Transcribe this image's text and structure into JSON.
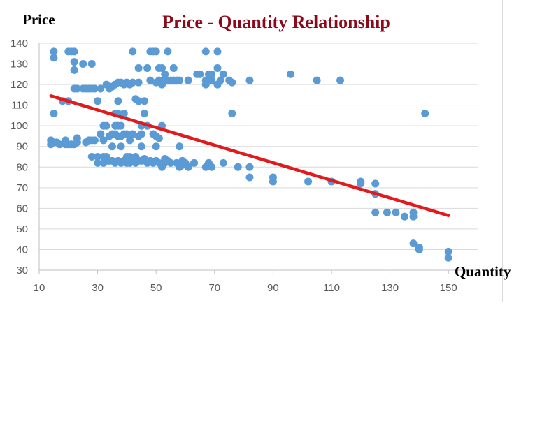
{
  "chart_data": {
    "type": "scatter",
    "title": "Price - Quantity Relationship",
    "xlabel": "Quantity",
    "ylabel": "Price",
    "xlim": [
      10,
      160
    ],
    "ylim": [
      30,
      140
    ],
    "x_ticks": [
      "10",
      "30",
      "50",
      "70",
      "90",
      "110",
      "130",
      "150"
    ],
    "y_ticks": [
      "140",
      "130",
      "120",
      "110",
      "100",
      "90",
      "80",
      "70",
      "60",
      "50",
      "40",
      "30"
    ],
    "grid": true,
    "colors": {
      "points": "#5b9bd5",
      "trendline": "#e31a1c",
      "title": "#8b0a1a",
      "grid": "#d9d9d9"
    },
    "trendline": {
      "x": [
        14,
        150
      ],
      "y": [
        114.5,
        56.5
      ]
    },
    "series": [
      {
        "points": [
          [
            15,
            136
          ],
          [
            15,
            133
          ],
          [
            15,
            106
          ],
          [
            14,
            91
          ],
          [
            14,
            93
          ],
          [
            15,
            92
          ],
          [
            16,
            92
          ],
          [
            17,
            91
          ],
          [
            18,
            112
          ],
          [
            19,
            91
          ],
          [
            19,
            93
          ],
          [
            20,
            112
          ],
          [
            20,
            91
          ],
          [
            20,
            136
          ],
          [
            21,
            91
          ],
          [
            21,
            136
          ],
          [
            22,
            136
          ],
          [
            22,
            131
          ],
          [
            22,
            127
          ],
          [
            22,
            118
          ],
          [
            22,
            91
          ],
          [
            23,
            118
          ],
          [
            23,
            94
          ],
          [
            23,
            92
          ],
          [
            25,
            130
          ],
          [
            25,
            118
          ],
          [
            26,
            118
          ],
          [
            26,
            92
          ],
          [
            27,
            118
          ],
          [
            27,
            93
          ],
          [
            28,
            130
          ],
          [
            28,
            118
          ],
          [
            28,
            93
          ],
          [
            28,
            85
          ],
          [
            29,
            118
          ],
          [
            29,
            93
          ],
          [
            30,
            112
          ],
          [
            30,
            82
          ],
          [
            30,
            85
          ],
          [
            31,
            96
          ],
          [
            31,
            118
          ],
          [
            32,
            100
          ],
          [
            32,
            93
          ],
          [
            32,
            82
          ],
          [
            32,
            85
          ],
          [
            33,
            120
          ],
          [
            33,
            100
          ],
          [
            33,
            85
          ],
          [
            33,
            83
          ],
          [
            34,
            118
          ],
          [
            34,
            95
          ],
          [
            34,
            83
          ],
          [
            35,
            119
          ],
          [
            35,
            96
          ],
          [
            35,
            90
          ],
          [
            35,
            83
          ],
          [
            36,
            120
          ],
          [
            36,
            106
          ],
          [
            36,
            100
          ],
          [
            36,
            96
          ],
          [
            36,
            82
          ],
          [
            37,
            121
          ],
          [
            37,
            106
          ],
          [
            37,
            112
          ],
          [
            37,
            100
          ],
          [
            37,
            95
          ],
          [
            37,
            83
          ],
          [
            38,
            121
          ],
          [
            38,
            100
          ],
          [
            38,
            95
          ],
          [
            38,
            90
          ],
          [
            38,
            82
          ],
          [
            39,
            120
          ],
          [
            39,
            106
          ],
          [
            39,
            96
          ],
          [
            39,
            83
          ],
          [
            40,
            121
          ],
          [
            40,
            96
          ],
          [
            40,
            85
          ],
          [
            40,
            82
          ],
          [
            41,
            120
          ],
          [
            41,
            95
          ],
          [
            41,
            93
          ],
          [
            41,
            85
          ],
          [
            41,
            82
          ],
          [
            42,
            136
          ],
          [
            42,
            121
          ],
          [
            42,
            96
          ],
          [
            42,
            83
          ],
          [
            43,
            113
          ],
          [
            43,
            82
          ],
          [
            43,
            85
          ],
          [
            44,
            128
          ],
          [
            44,
            121
          ],
          [
            44,
            112
          ],
          [
            44,
            95
          ],
          [
            44,
            83
          ],
          [
            45,
            100
          ],
          [
            45,
            96
          ],
          [
            45,
            90
          ],
          [
            45,
            83
          ],
          [
            46,
            112
          ],
          [
            46,
            106
          ],
          [
            46,
            84
          ],
          [
            47,
            128
          ],
          [
            47,
            100
          ],
          [
            47,
            82
          ],
          [
            48,
            136
          ],
          [
            48,
            122
          ],
          [
            48,
            83
          ],
          [
            49,
            136
          ],
          [
            49,
            96
          ],
          [
            49,
            82
          ],
          [
            50,
            136
          ],
          [
            50,
            121
          ],
          [
            50,
            95
          ],
          [
            50,
            90
          ],
          [
            50,
            83
          ],
          [
            51,
            128
          ],
          [
            51,
            122
          ],
          [
            51,
            94
          ],
          [
            51,
            82
          ],
          [
            52,
            128
          ],
          [
            52,
            100
          ],
          [
            52,
            120
          ],
          [
            52,
            80
          ],
          [
            53,
            125
          ],
          [
            53,
            122
          ],
          [
            53,
            84
          ],
          [
            53,
            82
          ],
          [
            54,
            136
          ],
          [
            54,
            122
          ],
          [
            54,
            83
          ],
          [
            55,
            122
          ],
          [
            55,
            82
          ],
          [
            56,
            128
          ],
          [
            56,
            122
          ],
          [
            57,
            122
          ],
          [
            57,
            82
          ],
          [
            58,
            122
          ],
          [
            58,
            90
          ],
          [
            58,
            80
          ],
          [
            59,
            83
          ],
          [
            59,
            81
          ],
          [
            60,
            82
          ],
          [
            61,
            122
          ],
          [
            61,
            80
          ],
          [
            63,
            82
          ],
          [
            64,
            125
          ],
          [
            65,
            125
          ],
          [
            67,
            136
          ],
          [
            67,
            122
          ],
          [
            67,
            120
          ],
          [
            67,
            80
          ],
          [
            68,
            125
          ],
          [
            68,
            82
          ],
          [
            69,
            125
          ],
          [
            69,
            122
          ],
          [
            69,
            80
          ],
          [
            71,
            136
          ],
          [
            71,
            128
          ],
          [
            71,
            120
          ],
          [
            72,
            122
          ],
          [
            73,
            125
          ],
          [
            73,
            82
          ],
          [
            75,
            122
          ],
          [
            76,
            106
          ],
          [
            76,
            121
          ],
          [
            78,
            80
          ],
          [
            82,
            122
          ],
          [
            82,
            80
          ],
          [
            82,
            75
          ],
          [
            90,
            75
          ],
          [
            90,
            73
          ],
          [
            96,
            125
          ],
          [
            102,
            73
          ],
          [
            105,
            122
          ],
          [
            110,
            73
          ],
          [
            113,
            122
          ],
          [
            120,
            73
          ],
          [
            120,
            72
          ],
          [
            125,
            72
          ],
          [
            125,
            67
          ],
          [
            125,
            58
          ],
          [
            129,
            58
          ],
          [
            132,
            58
          ],
          [
            135,
            56
          ],
          [
            138,
            58
          ],
          [
            138,
            56
          ],
          [
            138,
            43
          ],
          [
            140,
            41
          ],
          [
            140,
            40
          ],
          [
            142,
            106
          ],
          [
            150,
            39
          ],
          [
            150,
            36
          ]
        ]
      }
    ]
  }
}
